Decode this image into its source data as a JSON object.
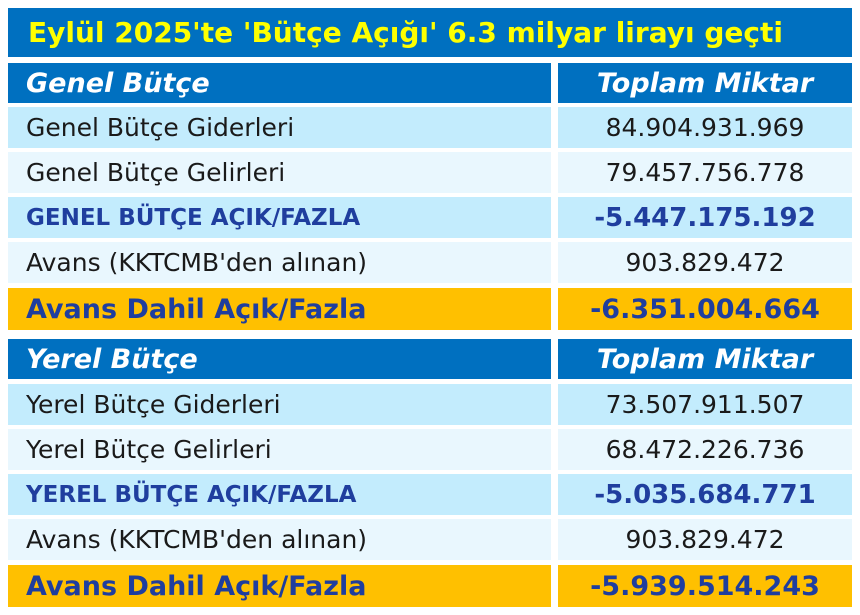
{
  "title": "Eylül 2025'te 'Bütçe Açığı' 6.3 milyar lirayı geçti",
  "general": {
    "header_label": "Genel Bütçe",
    "header_amount": "Toplam Miktar",
    "rows": [
      {
        "label": "Genel Bütçe Giderleri",
        "value": "84.904.931.969"
      },
      {
        "label": "Genel Bütçe Gelirleri",
        "value": "79.457.756.778"
      },
      {
        "label": "GENEL BÜTÇE AÇIK/FAZLA",
        "value": "-5.447.175.192"
      },
      {
        "label": "Avans (KKTCMB'den alınan)",
        "value": "903.829.472"
      },
      {
        "label": "Avans Dahil Açık/Fazla",
        "value": "-6.351.004.664"
      }
    ]
  },
  "local": {
    "header_label": "Yerel Bütçe",
    "header_amount": "Toplam Miktar",
    "rows": [
      {
        "label": "Yerel Bütçe Giderleri",
        "value": "73.507.911.507"
      },
      {
        "label": "Yerel Bütçe Gelirleri",
        "value": "68.472.226.736"
      },
      {
        "label": "YEREL BÜTÇE AÇIK/FAZLA",
        "value": "-5.035.684.771"
      },
      {
        "label": "Avans (KKTCMB'den alınan)",
        "value": "903.829.472"
      },
      {
        "label": "Avans Dahil Açık/Fazla",
        "value": "-5.939.514.243"
      }
    ]
  },
  "colors": {
    "header_blue": "#0070c0",
    "title_yellow": "#ffff00",
    "row_light_blue": "#c3ecfd",
    "row_pale_blue": "#e9f7fe",
    "total_gold": "#ffc000",
    "emphasis_text_blue": "#1f3e9e"
  }
}
